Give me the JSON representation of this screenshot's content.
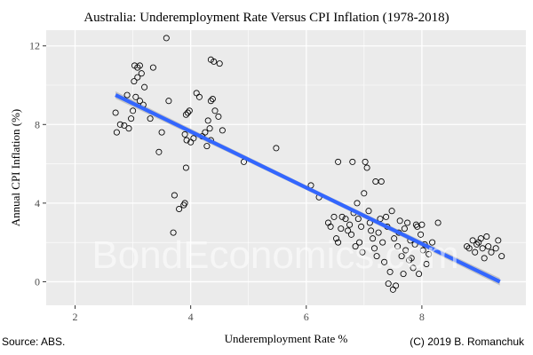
{
  "chart_data": {
    "type": "scatter",
    "title": "Australia: Underemployment Rate Versus CPI Inflation (1978-2018)",
    "xlabel": "Underemployment Rate %",
    "ylabel": "Annual CPI Inflation (%)",
    "xlim": [
      1.5,
      9.8
    ],
    "ylim": [
      -1.2,
      12.8
    ],
    "x_ticks": [
      2,
      4,
      6,
      8
    ],
    "y_ticks": [
      0,
      4,
      8,
      12
    ],
    "grid": true,
    "legend": "none",
    "colors": {
      "panel": "#ebebeb",
      "gridline": "#ffffff",
      "fit_line": "#3366ff",
      "confidence_band": "#bdbdbd"
    },
    "fit": {
      "method": "linear",
      "x_start": 2.7,
      "y_start": 9.5,
      "x_end": 9.35,
      "y_end": 0.0,
      "confidence_band": true
    },
    "points": [
      [
        2.7,
        8.6
      ],
      [
        2.72,
        7.6
      ],
      [
        2.78,
        8.0
      ],
      [
        2.85,
        7.95
      ],
      [
        2.9,
        9.5
      ],
      [
        2.93,
        7.8
      ],
      [
        2.97,
        8.3
      ],
      [
        3.0,
        8.7
      ],
      [
        3.02,
        10.2
      ],
      [
        3.03,
        11.0
      ],
      [
        3.08,
        10.9
      ],
      [
        3.12,
        11.0
      ],
      [
        3.08,
        10.4
      ],
      [
        3.15,
        10.6
      ],
      [
        3.2,
        9.9
      ],
      [
        3.05,
        9.4
      ],
      [
        3.12,
        9.2
      ],
      [
        3.18,
        9.0
      ],
      [
        3.35,
        10.9
      ],
      [
        3.3,
        8.3
      ],
      [
        3.45,
        6.6
      ],
      [
        3.5,
        7.6
      ],
      [
        3.58,
        12.4
      ],
      [
        3.62,
        9.2
      ],
      [
        3.72,
        4.4
      ],
      [
        3.7,
        2.5
      ],
      [
        3.8,
        3.7
      ],
      [
        3.88,
        3.9
      ],
      [
        3.9,
        4.0
      ],
      [
        3.92,
        8.5
      ],
      [
        3.95,
        8.6
      ],
      [
        3.98,
        8.7
      ],
      [
        3.9,
        7.5
      ],
      [
        3.93,
        7.2
      ],
      [
        4.0,
        7.1
      ],
      [
        4.05,
        7.3
      ],
      [
        3.92,
        5.8
      ],
      [
        4.1,
        9.6
      ],
      [
        4.15,
        9.4
      ],
      [
        4.2,
        7.4
      ],
      [
        4.25,
        7.6
      ],
      [
        4.28,
        6.9
      ],
      [
        4.3,
        8.2
      ],
      [
        4.33,
        7.8
      ],
      [
        4.35,
        9.2
      ],
      [
        4.38,
        9.3
      ],
      [
        4.42,
        8.7
      ],
      [
        4.48,
        8.4
      ],
      [
        4.55,
        7.7
      ],
      [
        4.35,
        11.3
      ],
      [
        4.4,
        11.2
      ],
      [
        4.5,
        11.1
      ],
      [
        4.35,
        7.2
      ],
      [
        4.92,
        6.1
      ],
      [
        5.48,
        6.8
      ],
      [
        6.08,
        4.9
      ],
      [
        6.22,
        4.3
      ],
      [
        6.38,
        3.0
      ],
      [
        6.42,
        2.8
      ],
      [
        6.48,
        3.3
      ],
      [
        6.52,
        2.2
      ],
      [
        6.55,
        2.0
      ],
      [
        6.6,
        2.7
      ],
      [
        6.62,
        3.3
      ],
      [
        6.68,
        3.2
      ],
      [
        6.72,
        2.6
      ],
      [
        6.75,
        2.9
      ],
      [
        6.78,
        2.4
      ],
      [
        6.55,
        6.1
      ],
      [
        6.8,
        6.1
      ],
      [
        6.82,
        3.5
      ],
      [
        6.85,
        1.8
      ],
      [
        6.88,
        4.0
      ],
      [
        6.9,
        3.2
      ],
      [
        6.92,
        2.0
      ],
      [
        6.95,
        2.8
      ],
      [
        6.97,
        1.5
      ],
      [
        7.0,
        4.5
      ],
      [
        7.02,
        6.1
      ],
      [
        7.05,
        5.8
      ],
      [
        7.08,
        3.6
      ],
      [
        7.1,
        3.0
      ],
      [
        7.12,
        2.6
      ],
      [
        7.15,
        2.2
      ],
      [
        7.18,
        1.7
      ],
      [
        7.2,
        5.1
      ],
      [
        7.22,
        1.3
      ],
      [
        7.25,
        2.5
      ],
      [
        7.28,
        3.2
      ],
      [
        7.3,
        5.1
      ],
      [
        7.32,
        2.0
      ],
      [
        7.35,
        1.0
      ],
      [
        7.38,
        3.3
      ],
      [
        7.4,
        2.8
      ],
      [
        7.42,
        -0.1
      ],
      [
        7.45,
        0.5
      ],
      [
        7.48,
        3.6
      ],
      [
        7.5,
        -0.4
      ],
      [
        7.52,
        2.2
      ],
      [
        7.55,
        -0.2
      ],
      [
        7.58,
        1.8
      ],
      [
        7.6,
        2.5
      ],
      [
        7.62,
        3.1
      ],
      [
        7.65,
        1.3
      ],
      [
        7.68,
        0.4
      ],
      [
        7.7,
        2.7
      ],
      [
        7.72,
        1.6
      ],
      [
        7.75,
        3.0
      ],
      [
        7.78,
        1.1
      ],
      [
        7.8,
        2.1
      ],
      [
        7.82,
        1.2
      ],
      [
        7.85,
        0.7
      ],
      [
        7.88,
        1.9
      ],
      [
        7.9,
        2.9
      ],
      [
        7.92,
        2.8
      ],
      [
        7.95,
        0.4
      ],
      [
        7.98,
        2.4
      ],
      [
        8.0,
        2.9
      ],
      [
        8.02,
        1.6
      ],
      [
        8.05,
        1.9
      ],
      [
        8.08,
        0.9
      ],
      [
        8.12,
        1.4
      ],
      [
        8.18,
        2.0
      ],
      [
        8.28,
        3.0
      ],
      [
        8.78,
        1.8
      ],
      [
        8.82,
        1.7
      ],
      [
        8.88,
        2.1
      ],
      [
        8.92,
        1.5
      ],
      [
        8.95,
        1.9
      ],
      [
        8.98,
        2.0
      ],
      [
        9.02,
        2.2
      ],
      [
        9.05,
        1.7
      ],
      [
        9.08,
        1.2
      ],
      [
        9.12,
        2.3
      ],
      [
        9.15,
        1.8
      ],
      [
        9.2,
        1.5
      ],
      [
        9.28,
        1.7
      ],
      [
        9.32,
        2.1
      ],
      [
        9.38,
        1.3
      ]
    ]
  },
  "watermark": "BondEconomics.com",
  "footer": {
    "source": "Source: ABS.",
    "credit": "(C) 2019 B. Romanchuk"
  }
}
